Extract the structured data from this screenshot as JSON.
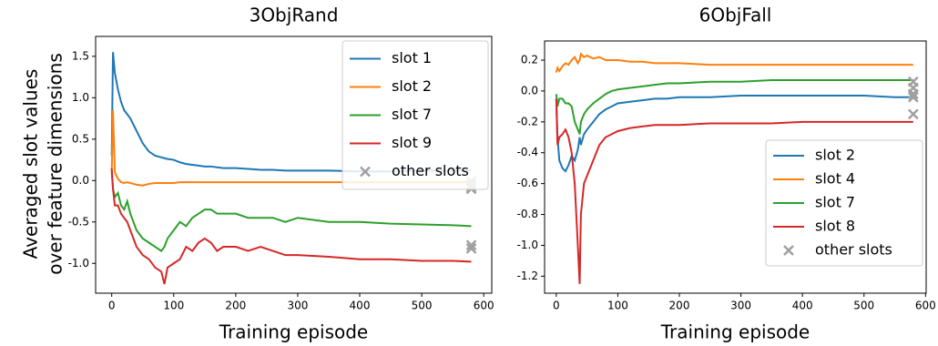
{
  "chart_data": [
    {
      "type": "line",
      "title": "3ObjRand",
      "xlabel": "Training episode",
      "ylabel": [
        "Averaged slot values",
        "over feature dimensions"
      ],
      "x": [
        0,
        2,
        5,
        10,
        15,
        20,
        25,
        30,
        40,
        50,
        60,
        70,
        80,
        85,
        90,
        100,
        110,
        120,
        130,
        140,
        150,
        160,
        170,
        180,
        200,
        220,
        240,
        260,
        280,
        300,
        350,
        400,
        450,
        500,
        550,
        580
      ],
      "series": [
        {
          "name": "slot 1",
          "color": "#1f77b4",
          "values": [
            0.3,
            1.55,
            1.3,
            1.1,
            0.95,
            0.85,
            0.8,
            0.75,
            0.6,
            0.45,
            0.35,
            0.3,
            0.28,
            0.27,
            0.26,
            0.25,
            0.22,
            0.2,
            0.19,
            0.18,
            0.17,
            0.17,
            0.16,
            0.15,
            0.15,
            0.14,
            0.13,
            0.13,
            0.12,
            0.12,
            0.12,
            0.11,
            0.11,
            0.12,
            0.12,
            0.12
          ]
        },
        {
          "name": "slot 2",
          "color": "#ff7f0e",
          "values": [
            0.1,
            0.85,
            0.1,
            0.02,
            -0.02,
            -0.03,
            -0.02,
            -0.03,
            -0.05,
            -0.06,
            -0.04,
            -0.03,
            -0.03,
            -0.03,
            -0.03,
            -0.03,
            -0.02,
            -0.02,
            -0.02,
            -0.02,
            -0.02,
            -0.02,
            -0.02,
            -0.02,
            -0.02,
            -0.02,
            -0.02,
            -0.02,
            -0.02,
            -0.02,
            -0.02,
            -0.02,
            -0.02,
            -0.02,
            -0.02,
            -0.02
          ]
        },
        {
          "name": "slot 7",
          "color": "#2ca02c",
          "values": [
            0.1,
            -0.1,
            -0.2,
            -0.15,
            -0.3,
            -0.35,
            -0.25,
            -0.4,
            -0.6,
            -0.7,
            -0.75,
            -0.8,
            -0.85,
            -0.8,
            -0.7,
            -0.6,
            -0.5,
            -0.55,
            -0.45,
            -0.4,
            -0.35,
            -0.35,
            -0.4,
            -0.4,
            -0.4,
            -0.45,
            -0.45,
            -0.45,
            -0.5,
            -0.45,
            -0.5,
            -0.5,
            -0.52,
            -0.53,
            -0.54,
            -0.55
          ]
        },
        {
          "name": "slot 9",
          "color": "#d62728",
          "values": [
            0.15,
            -0.1,
            -0.3,
            -0.3,
            -0.4,
            -0.45,
            -0.5,
            -0.6,
            -0.8,
            -0.9,
            -0.95,
            -1.05,
            -1.1,
            -1.25,
            -1.05,
            -1.0,
            -0.95,
            -0.8,
            -0.85,
            -0.75,
            -0.7,
            -0.75,
            -0.85,
            -0.8,
            -0.8,
            -0.85,
            -0.8,
            -0.85,
            -0.9,
            -0.9,
            -0.92,
            -0.95,
            -0.95,
            -0.97,
            -0.97,
            -0.98
          ]
        }
      ],
      "other_slots": {
        "name": "other slots",
        "color": "#a0a0a0",
        "x": [
          580,
          580,
          580,
          580,
          580,
          580
        ],
        "values": [
          -0.01,
          -0.05,
          -0.08,
          -0.1,
          -0.78,
          -0.82
        ]
      },
      "xlim": [
        -26,
        613
      ],
      "ylim": [
        -1.36,
        1.74
      ],
      "xticks": [
        0,
        100,
        200,
        300,
        400,
        500,
        600
      ],
      "yticks": [
        {
          "value": -1,
          "label": "-1.0"
        },
        -0.5,
        {
          "value": 0,
          "label": "0.0"
        },
        0.5,
        {
          "value": 1,
          "label": "1.0"
        },
        1.5
      ],
      "legend": "upper right"
    },
    {
      "type": "line",
      "title": "6ObjFall",
      "xlabel": "Training episode",
      "x": [
        0,
        2,
        5,
        10,
        15,
        20,
        25,
        30,
        35,
        38,
        40,
        45,
        50,
        60,
        70,
        80,
        90,
        100,
        120,
        140,
        160,
        180,
        200,
        250,
        300,
        350,
        400,
        450,
        500,
        550,
        580
      ],
      "series": [
        {
          "name": "slot 2",
          "color": "#1f77b4",
          "values": [
            -0.05,
            -0.3,
            -0.45,
            -0.5,
            -0.52,
            -0.48,
            -0.42,
            -0.45,
            -0.38,
            -0.3,
            -0.35,
            -0.28,
            -0.25,
            -0.2,
            -0.15,
            -0.12,
            -0.1,
            -0.08,
            -0.07,
            -0.06,
            -0.05,
            -0.05,
            -0.04,
            -0.04,
            -0.03,
            -0.03,
            -0.03,
            -0.03,
            -0.03,
            -0.04,
            -0.04
          ]
        },
        {
          "name": "slot 4",
          "color": "#ff7f0e",
          "values": [
            0.12,
            0.15,
            0.13,
            0.16,
            0.18,
            0.17,
            0.2,
            0.22,
            0.18,
            0.2,
            0.24,
            0.22,
            0.23,
            0.21,
            0.22,
            0.2,
            0.2,
            0.2,
            0.19,
            0.19,
            0.18,
            0.18,
            0.18,
            0.17,
            0.17,
            0.17,
            0.17,
            0.17,
            0.17,
            0.17,
            0.17
          ]
        },
        {
          "name": "slot 7",
          "color": "#2ca02c",
          "values": [
            -0.02,
            -0.1,
            -0.05,
            -0.05,
            -0.08,
            -0.08,
            -0.1,
            -0.2,
            -0.25,
            -0.28,
            -0.2,
            -0.15,
            -0.12,
            -0.08,
            -0.05,
            -0.02,
            0.0,
            0.01,
            0.02,
            0.03,
            0.04,
            0.05,
            0.05,
            0.06,
            0.06,
            0.07,
            0.07,
            0.07,
            0.07,
            0.07,
            0.07
          ]
        },
        {
          "name": "slot 8",
          "color": "#d62728",
          "values": [
            -0.05,
            -0.35,
            -0.3,
            -0.28,
            -0.25,
            -0.3,
            -0.4,
            -0.6,
            -1.0,
            -1.25,
            -0.8,
            -0.6,
            -0.55,
            -0.45,
            -0.35,
            -0.3,
            -0.28,
            -0.26,
            -0.24,
            -0.23,
            -0.22,
            -0.22,
            -0.22,
            -0.21,
            -0.21,
            -0.21,
            -0.2,
            -0.2,
            -0.2,
            -0.2,
            -0.2
          ]
        }
      ],
      "other_slots": {
        "name": "other slots",
        "color": "#a0a0a0",
        "x": [
          580,
          580,
          580,
          580,
          580
        ],
        "values": [
          0.06,
          0.02,
          -0.02,
          -0.04,
          -0.15
        ]
      },
      "xlim": [
        -19,
        601
      ],
      "ylim": [
        -1.31,
        0.324
      ],
      "xticks": [
        0,
        100,
        200,
        300,
        400,
        500,
        600
      ],
      "yticks": [
        -1.2,
        {
          "value": -1,
          "label": "-1.0"
        },
        -0.8,
        -0.6,
        -0.4,
        -0.2,
        {
          "value": 0,
          "label": "0.0"
        },
        0.2
      ],
      "legend": "lower right"
    }
  ]
}
